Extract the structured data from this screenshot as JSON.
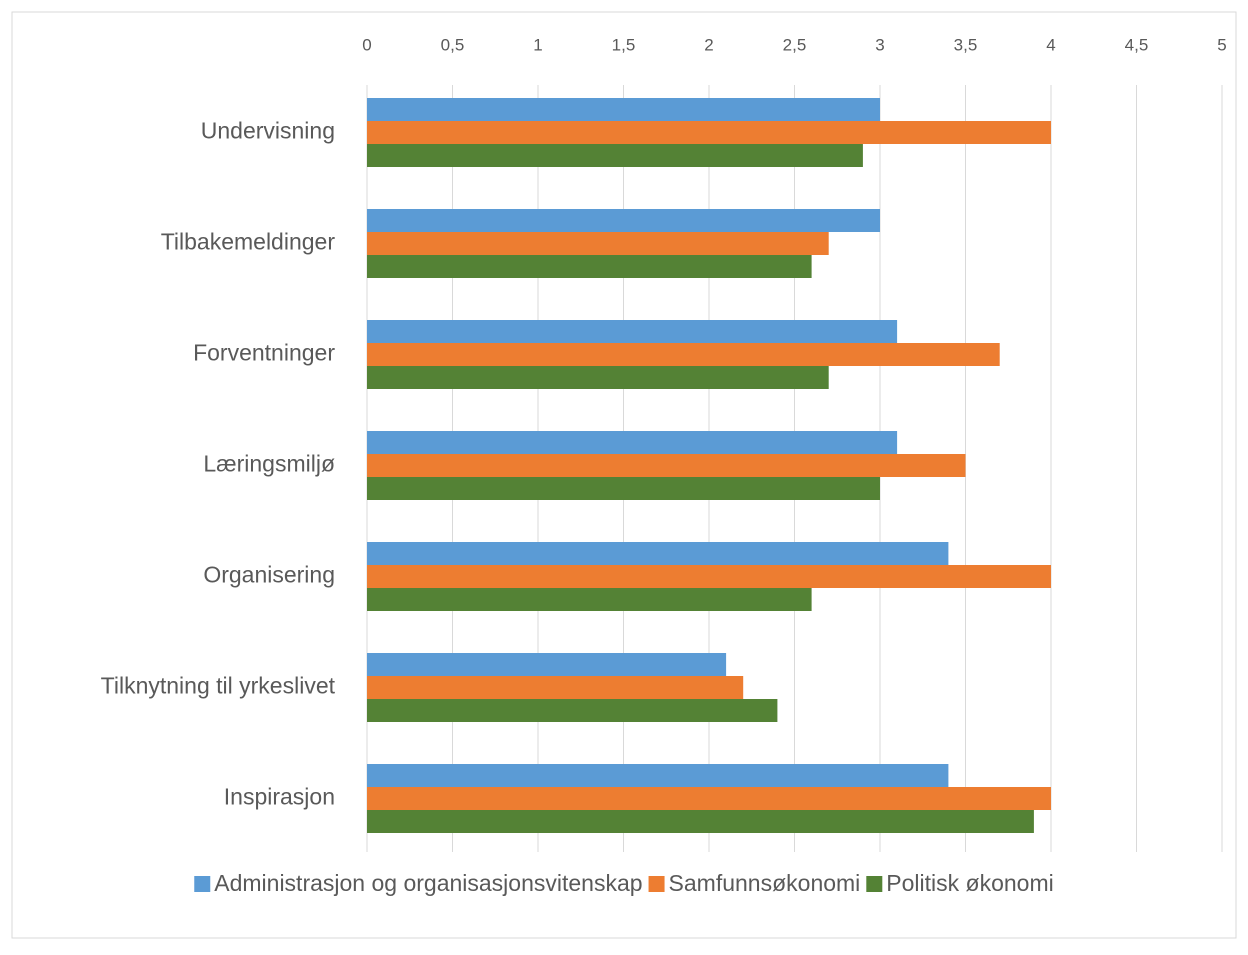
{
  "chart_data": {
    "type": "hbar",
    "categories": [
      "Undervisning",
      "Tilbakemeldinger",
      "Forventninger",
      "Læringsmiljø",
      "Organisering",
      "Tilknytning til yrkeslivet",
      "Inspirasjon"
    ],
    "series": [
      {
        "name": "Administrasjon og organisasjonsvitenskap",
        "color": "#5b9bd5",
        "values": [
          3.0,
          3.0,
          3.1,
          3.1,
          3.4,
          2.1,
          3.4
        ]
      },
      {
        "name": "Samfunnsøkonomi",
        "color": "#ed7d31",
        "values": [
          4.0,
          2.7,
          3.7,
          3.5,
          4.0,
          2.2,
          4.0
        ]
      },
      {
        "name": "Politisk økonomi",
        "color": "#548235",
        "values": [
          2.9,
          2.6,
          2.7,
          3.0,
          2.6,
          2.4,
          3.9
        ]
      }
    ],
    "xlim": [
      0,
      5
    ],
    "xticks": [
      0,
      {
        "value": 0.5,
        "label": "0,5"
      },
      1,
      {
        "value": 1.5,
        "label": "1,5"
      },
      2,
      {
        "value": 2.5,
        "label": "2,5"
      },
      3,
      {
        "value": 3.5,
        "label": "3,5"
      },
      4,
      {
        "value": 4.5,
        "label": "4,5"
      },
      5
    ],
    "grid": true,
    "legend": "bottom"
  }
}
